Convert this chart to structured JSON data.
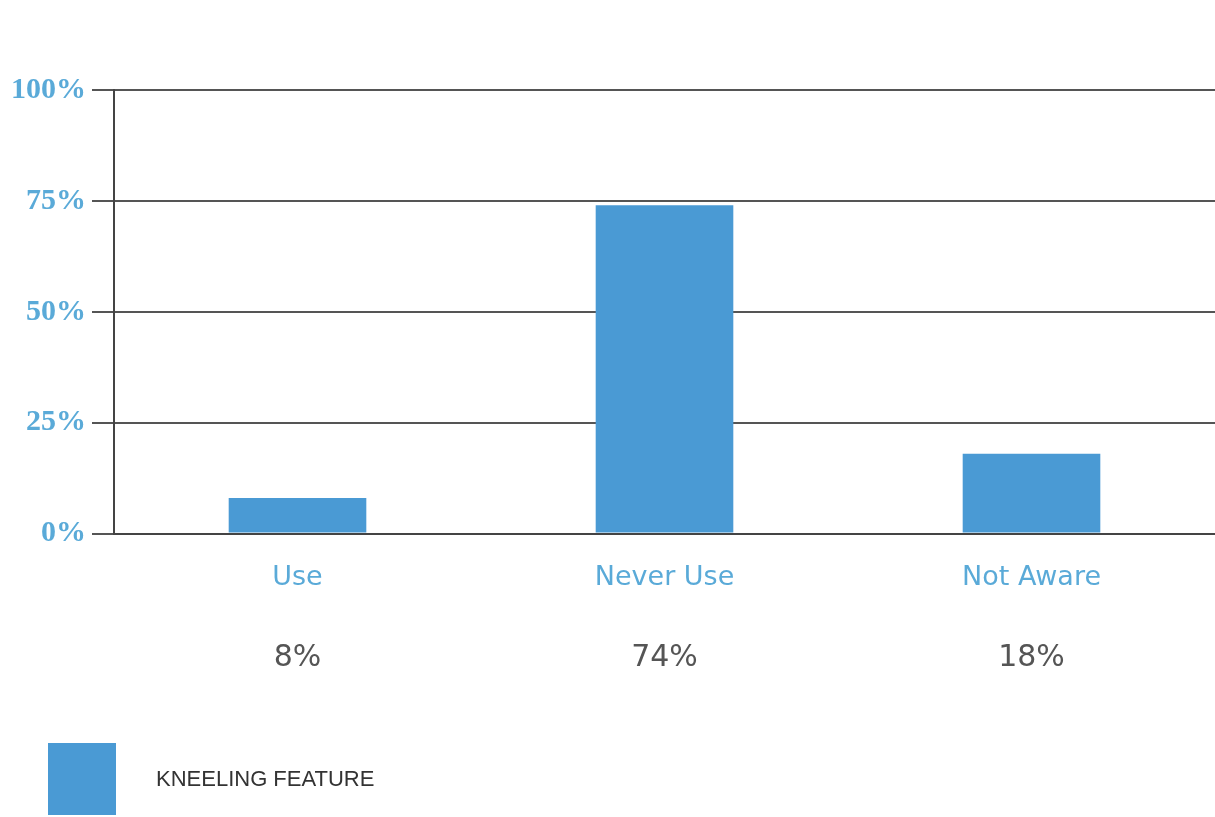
{
  "chart_data": {
    "type": "bar",
    "categories": [
      "Use",
      "Never Use",
      "Not Aware"
    ],
    "series": [
      {
        "name": "KNEELING FEATURE",
        "color": "#4a9ad4",
        "values": [
          8,
          74,
          18
        ],
        "value_labels": [
          "8%",
          "74%",
          "18%"
        ]
      }
    ],
    "ylim": [
      0,
      100
    ],
    "yticks": [
      {
        "value": 0,
        "label": "0%"
      },
      {
        "value": 25,
        "label": "25%"
      },
      {
        "value": 50,
        "label": "50%"
      },
      {
        "value": 75,
        "label": "75%"
      },
      {
        "value": 100,
        "label": "100%"
      }
    ],
    "grid": "y",
    "legend": "bottom left"
  }
}
